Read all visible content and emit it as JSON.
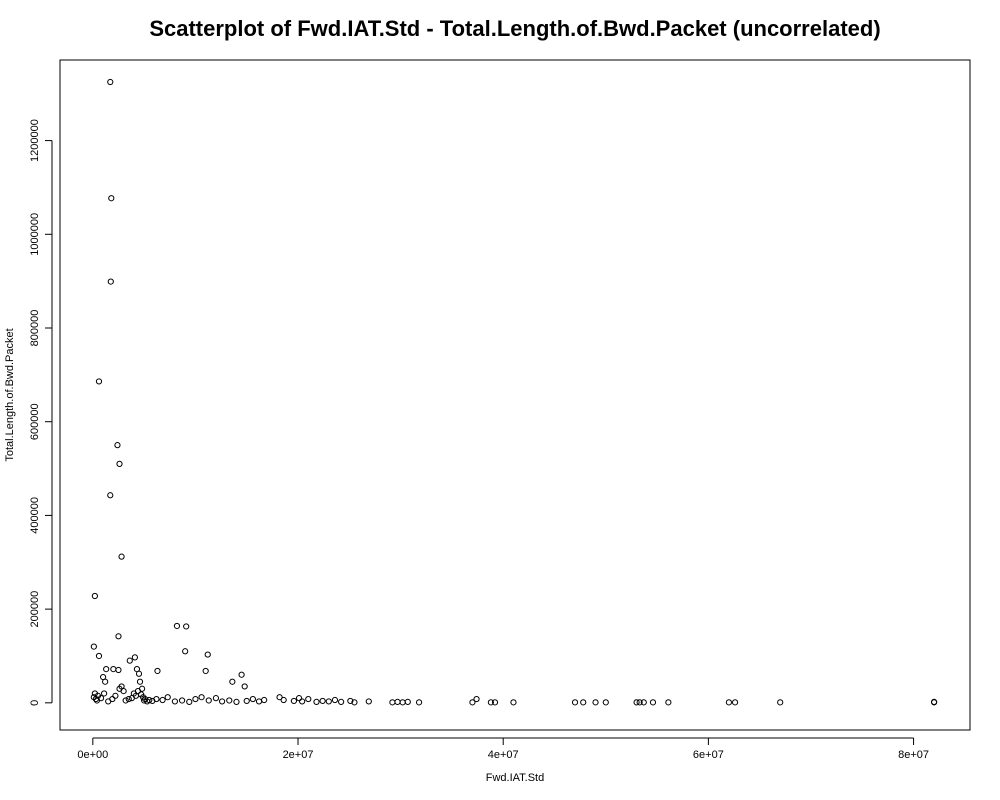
{
  "chart_data": {
    "type": "scatter",
    "title": "Scatterplot of Fwd.IAT.Std - Total.Length.of.Bwd.Packet (uncorrelated)",
    "xlabel": "Fwd.IAT.Std",
    "ylabel": "Total.Length.of.Bwd.Packet",
    "xlim": [
      -3200000,
      85500000
    ],
    "ylim": [
      -58000,
      1372000
    ],
    "x_ticks": [
      0,
      20000000,
      40000000,
      60000000,
      80000000
    ],
    "x_tick_labels": [
      "0e+00",
      "2e+07",
      "4e+07",
      "6e+07",
      "8e+07"
    ],
    "y_ticks": [
      0,
      200000,
      400000,
      600000,
      800000,
      1000000,
      1200000
    ],
    "y_tick_labels": [
      "0",
      "200000",
      "400000",
      "600000",
      "800000",
      "1000000",
      "1200000"
    ],
    "grid": false,
    "marker": "open-circle",
    "x": [
      1700000,
      1800000,
      1750000,
      600000,
      2400000,
      2600000,
      1700000,
      2800000,
      200000,
      8200000,
      9100000,
      2500000,
      100000,
      9000000,
      11200000,
      600000,
      4100000,
      3600000,
      6300000,
      11000000,
      1300000,
      2000000,
      2500000,
      4300000,
      4500000,
      14500000,
      1000000,
      13600000,
      1200000,
      4600000,
      2800000,
      14800000,
      2600000,
      4800000,
      3000000,
      200000,
      100000,
      300000,
      400000,
      500000,
      800000,
      1100000,
      1500000,
      1900000,
      2200000,
      3200000,
      3500000,
      3800000,
      4000000,
      4200000,
      4400000,
      4700000,
      4900000,
      5000000,
      5100000,
      5300000,
      5500000,
      5800000,
      6200000,
      6800000,
      7300000,
      8000000,
      8700000,
      9400000,
      10000000,
      10600000,
      11300000,
      12000000,
      12600000,
      13300000,
      14000000,
      15000000,
      15600000,
      16200000,
      16700000,
      18200000,
      18600000,
      19600000,
      20100000,
      20400000,
      21000000,
      21800000,
      22400000,
      23000000,
      23600000,
      24200000,
      25100000,
      25500000,
      26900000,
      29200000,
      29700000,
      30200000,
      30700000,
      31800000,
      37000000,
      37400000,
      38800000,
      39200000,
      41000000,
      47000000,
      47800000,
      49000000,
      50000000,
      53000000,
      53300000,
      53700000,
      54600000,
      56100000,
      62000000,
      62600000,
      67000000,
      82000000,
      82000000
    ],
    "y": [
      1325000,
      1077000,
      899000,
      686000,
      550000,
      510000,
      443000,
      312000,
      228000,
      164000,
      163000,
      142000,
      120000,
      110000,
      103000,
      100000,
      97000,
      90000,
      68000,
      68000,
      72000,
      72000,
      70000,
      72000,
      62000,
      60000,
      55000,
      45000,
      45000,
      45000,
      35000,
      35000,
      30000,
      30000,
      25000,
      20000,
      12000,
      8000,
      5000,
      15000,
      10000,
      20000,
      3000,
      8000,
      15000,
      5000,
      8000,
      10000,
      20000,
      15000,
      25000,
      18000,
      12000,
      5000,
      8000,
      3000,
      6000,
      4000,
      8000,
      6000,
      12000,
      3000,
      5000,
      2000,
      8000,
      12000,
      5000,
      10000,
      3000,
      5000,
      2000,
      4000,
      8000,
      3000,
      6000,
      12000,
      6000,
      4000,
      10000,
      3000,
      8000,
      2000,
      4000,
      3000,
      6000,
      2000,
      4000,
      1000,
      3000,
      1000,
      2000,
      1000,
      2000,
      1000,
      1000,
      8000,
      1000,
      1000,
      1000,
      1000,
      1000,
      1000,
      1000,
      1000,
      1000,
      1000,
      1000,
      1000,
      1000,
      1000,
      1000,
      1000,
      2000
    ]
  }
}
